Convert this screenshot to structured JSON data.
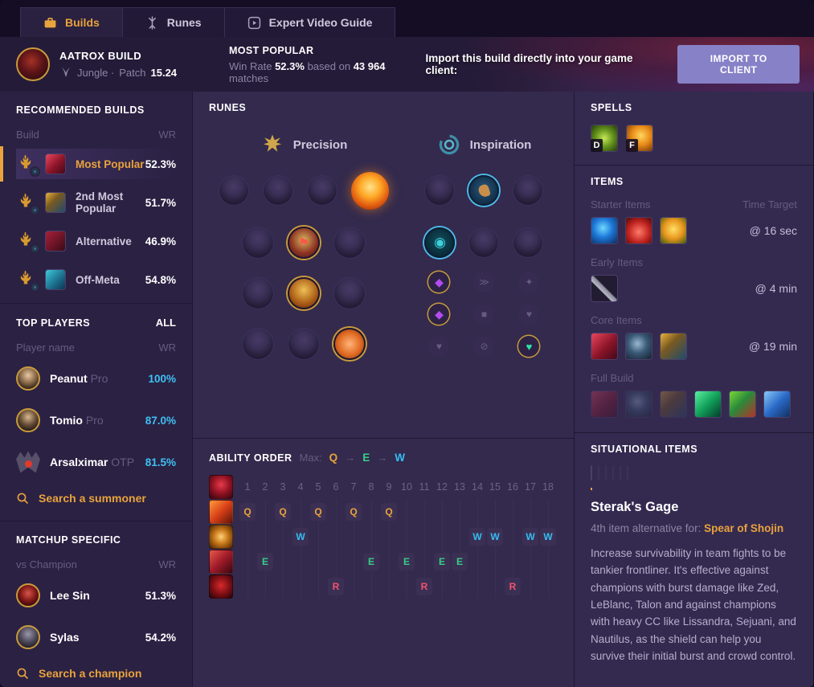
{
  "tabs": [
    {
      "label": "Builds",
      "active": true
    },
    {
      "label": "Runes",
      "active": false
    },
    {
      "label": "Expert Video Guide",
      "active": false
    }
  ],
  "header": {
    "title": "AATROX BUILD",
    "role": "Jungle ·",
    "patch_label": "Patch",
    "patch": "15.24",
    "most_popular_label": "MOST POPULAR",
    "win_rate_label": "Win Rate",
    "win_rate": "52.3%",
    "based_on_label": "based on",
    "matches": "43 964",
    "matches_label": "matches",
    "import_text": "Import this build directly into your game client:",
    "import_button": "IMPORT TO CLIENT"
  },
  "sidebar": {
    "recommended": {
      "title": "RECOMMENDED BUILDS",
      "col_build": "Build",
      "col_wr": "WR",
      "rows": [
        {
          "label": "Most Popular",
          "wr": "52.3%",
          "active": true,
          "icon": "crimson"
        },
        {
          "label": "2nd Most Popular",
          "wr": "51.7%",
          "active": false,
          "icon": "bluegold"
        },
        {
          "label": "Alternative",
          "wr": "46.9%",
          "active": false,
          "icon": "darkred"
        },
        {
          "label": "Off-Meta",
          "wr": "54.8%",
          "active": false,
          "icon": "teal"
        }
      ]
    },
    "top_players": {
      "title": "TOP PLAYERS",
      "all_label": "ALL",
      "col_name": "Player name",
      "col_wr": "WR",
      "rows": [
        {
          "name": "Peanut",
          "tag": "Pro",
          "wr": "100%",
          "avatar": "photo1",
          "ring": true
        },
        {
          "name": "Tomio",
          "tag": "Pro",
          "wr": "87.0%",
          "avatar": "photo2",
          "ring": true
        },
        {
          "name": "Arsalximar",
          "tag": "OTP",
          "wr": "81.5%",
          "avatar": "wings",
          "ring": false
        }
      ],
      "search_label": "Search a summoner"
    },
    "matchups": {
      "title": "MATCHUP SPECIFIC",
      "col_name": "vs Champion",
      "col_wr": "WR",
      "rows": [
        {
          "name": "Lee Sin",
          "wr": "51.3%",
          "avatar": "leesin"
        },
        {
          "name": "Sylas",
          "wr": "54.2%",
          "avatar": "sylas"
        }
      ],
      "search_label": "Search a champion"
    }
  },
  "runes": {
    "title": "RUNES",
    "primary": {
      "name": "Precision",
      "keystones": [
        {
          "name": "press-the-attack",
          "active": false
        },
        {
          "name": "lethal-tempo",
          "active": false
        },
        {
          "name": "fleet-footwork",
          "active": false
        },
        {
          "name": "conqueror",
          "active": true
        }
      ],
      "rows": [
        [
          {
            "name": "absorb-life",
            "active": false
          },
          {
            "name": "triumph",
            "active": true
          },
          {
            "name": "presence-of-mind",
            "active": false
          }
        ],
        [
          {
            "name": "legend-alacrity",
            "active": false
          },
          {
            "name": "legend-rune",
            "active": true
          },
          {
            "name": "legend-bloodline",
            "active": false
          }
        ],
        [
          {
            "name": "coup-de-grace",
            "active": false
          },
          {
            "name": "cut-down",
            "active": false
          },
          {
            "name": "last-stand",
            "active": true
          }
        ]
      ]
    },
    "secondary": {
      "name": "Inspiration",
      "rows": [
        [
          {
            "name": "hextech-rune",
            "active": false
          },
          {
            "name": "magical-footwear",
            "active": true
          },
          {
            "name": "cash-back",
            "active": false
          }
        ],
        [
          {
            "name": "cosmic-insight",
            "active": true
          },
          {
            "name": "time-warp-tonic",
            "active": false
          },
          {
            "name": "biscuit-delivery",
            "active": false
          }
        ]
      ]
    },
    "shards": [
      [
        {
          "glyph": "◆",
          "active": true,
          "color": "purple"
        },
        {
          "glyph": "≫",
          "active": false
        },
        {
          "glyph": "✦",
          "active": false
        }
      ],
      [
        {
          "glyph": "◆",
          "active": true,
          "color": "purple"
        },
        {
          "glyph": "■",
          "active": false
        },
        {
          "glyph": "♥",
          "active": false
        }
      ],
      [
        {
          "glyph": "♥",
          "active": false
        },
        {
          "glyph": "⊘",
          "active": false
        },
        {
          "glyph": "♥",
          "active": true,
          "color": "green"
        }
      ]
    ]
  },
  "ability_order": {
    "title": "ABILITY ORDER",
    "max_label": "Max:",
    "arrow": "→",
    "max_sequence": [
      "Q",
      "E",
      "W"
    ],
    "level_count": 18,
    "rows": [
      {
        "key": "Q",
        "variant": "q",
        "levels": [
          1,
          3,
          5,
          7,
          9
        ]
      },
      {
        "key": "W",
        "variant": "w",
        "levels": [
          4,
          14,
          15,
          17,
          18
        ]
      },
      {
        "key": "E",
        "variant": "e",
        "levels": [
          2,
          8,
          10,
          12,
          13
        ]
      },
      {
        "key": "R",
        "variant": "r",
        "levels": [
          6,
          11,
          16
        ]
      }
    ]
  },
  "spells": {
    "title": "SPELLS",
    "slots": [
      {
        "key": "D",
        "name": "ghost",
        "variant": "ghost"
      },
      {
        "key": "F",
        "name": "smite",
        "variant": "smite"
      }
    ]
  },
  "items": {
    "title": "ITEMS",
    "time_target_label": "Time Target",
    "groups": [
      {
        "label": "Starter Items",
        "time": "@ 16 sec",
        "icons": [
          {
            "v": "bluegem"
          },
          {
            "v": "potion"
          },
          {
            "v": "goldtrinket"
          }
        ]
      },
      {
        "label": "Early Items",
        "time": "@ 4 min",
        "icons": [
          {
            "v": "pickaxe"
          }
        ]
      },
      {
        "label": "Core Items",
        "time": "@ 19 min",
        "icons": [
          {
            "v": "crimson"
          },
          {
            "v": "boots"
          },
          {
            "v": "bluegold"
          }
        ]
      },
      {
        "label": "Full Build",
        "time": "",
        "icons": [
          {
            "v": "crimson",
            "dim": true
          },
          {
            "v": "boots",
            "dim": true
          },
          {
            "v": "bluegold",
            "dim": true
          },
          {
            "v": "greenblade"
          },
          {
            "v": "hydra"
          },
          {
            "v": "blueaxe"
          }
        ]
      }
    ]
  },
  "situational": {
    "title": "SITUATIONAL ITEMS",
    "icons": [
      {
        "v": "sterak",
        "selected": true
      },
      {
        "v": "m1"
      },
      {
        "v": "m2"
      },
      {
        "v": "m3"
      },
      {
        "v": "m4"
      },
      {
        "v": "m5"
      }
    ],
    "selected_item": {
      "name": "Sterak's Gage",
      "alt_label": "4th item alternative for:",
      "alt_item": "Spear of Shojin",
      "description": "Increase survivability in team fights to be tankier frontliner. It's effective against champions with burst damage like Zed, LeBlanc, Talon and against champions with heavy CC like Lissandra, Sejuani, and Nautilus, as the shield can help you survive their initial burst and crowd control."
    }
  },
  "colors": {
    "accent_gold": "#e9a33c",
    "accent_blue": "#3ec1f3",
    "q": "#e9a33c",
    "w": "#35bdf2",
    "e": "#35cf85",
    "r": "#f25270"
  }
}
